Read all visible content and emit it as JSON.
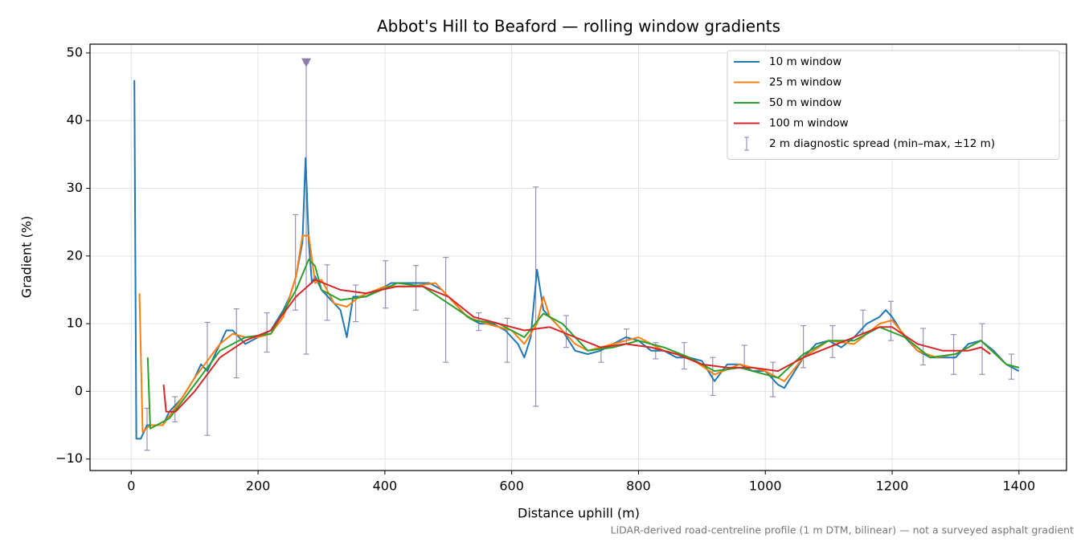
{
  "chart_data": {
    "type": "line",
    "title": "Abbot's Hill to Beaford — rolling window gradients",
    "x_label": "Distance uphill (m)",
    "y_label": "Gradient (%)",
    "footnote": "LiDAR-derived road-centreline profile (1 m DTM, bilinear) — not a surveyed asphalt gradient",
    "xlim": [
      -65,
      1475
    ],
    "ylim": [
      -11.7,
      51.3
    ],
    "xticks": [
      0,
      200,
      400,
      600,
      800,
      1000,
      1200,
      1400
    ],
    "yticks": [
      {
        "value": -10,
        "label": "−10"
      },
      0,
      10,
      20,
      30,
      40,
      50
    ],
    "grid": true,
    "legend": "upper right",
    "series": [
      {
        "name": "10 m window",
        "color": "#1f77b4",
        "x": [
          5,
          8,
          15,
          25,
          40,
          50,
          60,
          80,
          100,
          110,
          120,
          130,
          140,
          150,
          160,
          170,
          180,
          200,
          220,
          240,
          250,
          260,
          270,
          275,
          280,
          285,
          290,
          300,
          310,
          320,
          330,
          340,
          350,
          370,
          390,
          410,
          430,
          450,
          470,
          490,
          510,
          530,
          550,
          570,
          590,
          610,
          620,
          630,
          640,
          650,
          660,
          680,
          700,
          720,
          740,
          760,
          780,
          800,
          820,
          840,
          860,
          880,
          900,
          920,
          940,
          960,
          980,
          1000,
          1020,
          1030,
          1040,
          1060,
          1080,
          1100,
          1120,
          1140,
          1160,
          1180,
          1190,
          1200,
          1220,
          1240,
          1260,
          1280,
          1300,
          1320,
          1340,
          1360,
          1380,
          1400
        ],
        "values": [
          46,
          -7,
          -7,
          -5,
          -5,
          -5,
          -3,
          -1,
          2,
          4,
          3,
          5,
          7,
          9,
          9,
          8,
          7,
          8,
          9,
          12,
          14,
          17,
          22,
          34.5,
          22,
          16,
          17,
          15,
          14,
          13,
          12,
          8,
          14,
          14,
          15,
          16,
          16,
          16,
          16,
          15,
          13,
          11,
          10,
          10,
          9,
          7,
          5,
          8,
          18,
          12,
          11,
          9,
          6,
          5.5,
          6,
          7,
          8,
          7.5,
          6,
          6,
          5,
          5,
          4.5,
          1.5,
          4,
          4,
          3,
          3,
          1,
          0.5,
          2,
          5,
          7,
          7.5,
          6.5,
          8,
          10,
          11,
          12,
          11,
          8,
          6,
          5,
          5,
          5,
          7,
          7.5,
          6,
          4,
          3
        ]
      },
      {
        "name": "25 m window",
        "color": "#ff7f0e",
        "x": [
          13,
          18,
          30,
          50,
          80,
          100,
          140,
          160,
          180,
          200,
          220,
          240,
          260,
          270,
          280,
          290,
          300,
          320,
          340,
          360,
          400,
          440,
          480,
          500,
          530,
          560,
          600,
          620,
          640,
          650,
          660,
          680,
          700,
          720,
          760,
          800,
          840,
          880,
          920,
          960,
          1000,
          1030,
          1060,
          1100,
          1140,
          1180,
          1200,
          1240,
          1270,
          1300,
          1340,
          1380,
          1400
        ],
        "values": [
          14.5,
          -6,
          -5,
          -5,
          -1,
          2,
          7,
          8.5,
          8,
          8,
          8.5,
          11,
          17,
          23,
          23,
          16,
          16.5,
          13,
          12.5,
          14,
          15.5,
          15.5,
          16,
          14,
          11,
          10,
          9,
          7,
          10,
          14,
          11,
          9,
          7,
          6,
          7,
          8,
          6,
          5,
          2.5,
          4,
          3,
          1.5,
          5,
          7.5,
          7,
          10,
          10.5,
          6,
          5,
          5.5,
          7.5,
          4,
          3.5
        ]
      },
      {
        "name": "50 m window",
        "color": "#2ca02c",
        "x": [
          26,
          30,
          60,
          100,
          140,
          180,
          220,
          260,
          280,
          290,
          300,
          330,
          370,
          420,
          460,
          500,
          540,
          580,
          620,
          650,
          680,
          720,
          760,
          800,
          840,
          880,
          920,
          960,
          1000,
          1020,
          1060,
          1100,
          1140,
          1180,
          1220,
          1260,
          1300,
          1340,
          1380,
          1400
        ],
        "values": [
          5,
          -5.5,
          -4,
          1,
          6,
          8,
          8.5,
          15,
          19.5,
          18.5,
          15,
          13.5,
          14,
          16,
          15.5,
          13,
          10.5,
          10,
          8,
          11.5,
          10,
          6,
          6.5,
          7.5,
          6.5,
          5,
          3,
          3.5,
          2.5,
          2,
          5.5,
          7.5,
          7.5,
          9.5,
          8,
          5,
          5.5,
          7.5,
          4,
          3.5
        ]
      },
      {
        "name": "100 m window",
        "color": "#d62728",
        "x": [
          51,
          55,
          70,
          100,
          140,
          180,
          220,
          260,
          290,
          330,
          370,
          420,
          460,
          500,
          540,
          580,
          620,
          660,
          700,
          740,
          780,
          820,
          860,
          900,
          940,
          980,
          1020,
          1060,
          1100,
          1140,
          1180,
          1200,
          1240,
          1280,
          1320,
          1340,
          1355
        ],
        "values": [
          1,
          -3,
          -3,
          0,
          5,
          7.5,
          9,
          14,
          16.5,
          15,
          14.5,
          15.5,
          15.5,
          14,
          11,
          10,
          9,
          9.5,
          8,
          6.5,
          7,
          6.5,
          5.5,
          4,
          3.5,
          3.5,
          3,
          5,
          6.5,
          8,
          9.5,
          9.5,
          7,
          6,
          6,
          6.5,
          5.5
        ]
      }
    ],
    "errorbars": {
      "name": "2 m diagnostic spread (min–max, ±12 m)",
      "color": "#9b8fb8",
      "x": [
        25,
        69,
        120,
        166,
        214,
        259,
        276,
        309,
        354,
        401,
        449,
        496,
        548,
        593,
        638,
        686,
        741,
        781,
        827,
        872,
        917,
        967,
        1012,
        1060,
        1106,
        1154,
        1198,
        1249,
        1297,
        1342,
        1388
      ],
      "lows": [
        -8.7,
        -4.5,
        -6.5,
        2,
        5.8,
        12,
        5.5,
        10.5,
        10.3,
        12.3,
        12,
        4.3,
        9,
        4.3,
        -2.2,
        6.5,
        4.3,
        7,
        4.8,
        3.3,
        -0.6,
        3.5,
        -0.8,
        3.5,
        5,
        8.7,
        7.5,
        3.9,
        2.5,
        2.5,
        1.8
      ],
      "highs": [
        -2.5,
        -0.8,
        10.2,
        12.2,
        11.6,
        26.1,
        48.5,
        18.7,
        15.7,
        19.3,
        18.6,
        19.8,
        11.6,
        10.8,
        30.2,
        11.2,
        6.5,
        9.2,
        7.2,
        7.2,
        5,
        6.8,
        4.3,
        9.7,
        9.7,
        12,
        13.3,
        9.3,
        8.4,
        10,
        5.5
      ]
    },
    "off_scale_marker": {
      "x": 276,
      "y": 48.5,
      "color": "#8e7cae"
    }
  }
}
